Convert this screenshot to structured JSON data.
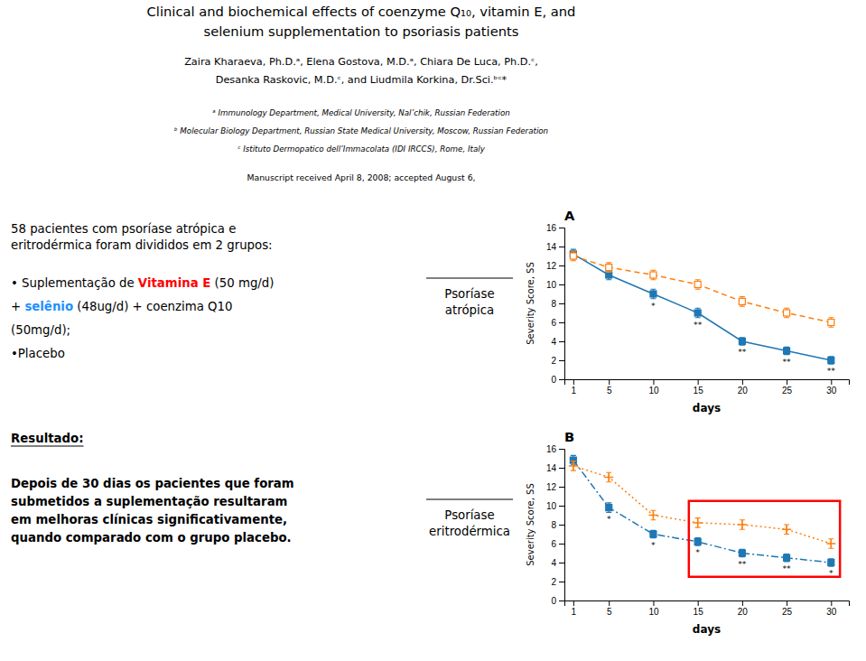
{
  "page_text": {
    "title": [
      "Clinical and biochemical effects of coenzyme Q₁₀, vitamin E, and",
      "selenium supplementation to psoriasis patients"
    ],
    "authors": [
      "Zaira Kharaeva, Ph.D.ᵃ, Elena Gostova, M.D.ᵃ, Chiara De Luca, Ph.D.ᶜ,",
      "Desanka Raskovic, M.D.ᶜ, and Liudmila Korkina, Dr.Sci.ᵇᶜ*"
    ],
    "affiliations": [
      "ᵃ Immunology Department, Medical University, Nal’chik, Russian Federation",
      "ᵇ Molecular Biology Department, Russian State Medical University, Moscow, Russian Federation",
      "ᶜ Istituto Dermopatico dell’Immacolata (IDI IRCCS), Rome, Italy"
    ],
    "received": "Manuscript received April 8, 2008; accepted August 6,",
    "methods": [
      [
        {
          "text": "58 pacientes com psoríase atrópica e"
        }
      ],
      [
        {
          "text": "eritrodérmica foram divididos em 2 grupos:"
        }
      ],
      [
        {
          "text": "• Suplementação de "
        },
        {
          "text": "Vitamina E",
          "color": "#ff0000"
        },
        {
          "text": " (50 mg/d)"
        }
      ],
      [
        {
          "text": "+ "
        },
        {
          "text": "selênio",
          "color": "#1e90ff"
        },
        {
          "text": " (48ug/d) + coenzima Q10"
        }
      ],
      [
        {
          "text": "(50mg/d);"
        }
      ],
      [
        {
          "text": "•Placebo"
        }
      ]
    ],
    "result_heading": "Resultado:",
    "result": [
      "Depois de 30 dias os pacientes que foram",
      "submetidos a suplementação resultaram",
      "em melhoras clínicas significativamente,",
      "quando comparado com o grupo placebo."
    ]
  },
  "chart_data": [
    {
      "type": "line",
      "title": "A",
      "x_label": "days",
      "y_label": "Severity Score, SS",
      "annotations": [
        "Psoríase",
        "atrópica"
      ],
      "x": [
        1,
        5,
        10,
        15,
        20,
        25,
        30
      ],
      "xlim": [
        0,
        32
      ],
      "xticks": [
        1,
        5,
        10,
        15,
        20,
        25,
        30
      ],
      "ylim": [
        0,
        16
      ],
      "yticks": [
        0,
        2,
        4,
        6,
        8,
        10,
        12,
        14,
        16
      ],
      "grid": false,
      "series": [
        {
          "values": [
            13.2,
            11.0,
            9.0,
            7.0,
            4.0,
            3.0,
            2.0
          ],
          "errors": [
            0.5,
            0.5,
            0.5,
            0.5,
            0.4,
            0.4,
            0.4
          ],
          "line_style": "solid",
          "marker": "square",
          "significance": [
            null,
            null,
            "*",
            "**",
            "**",
            "**",
            "**"
          ]
        },
        {
          "values": [
            13.0,
            11.8,
            11.0,
            10.0,
            8.2,
            7.0,
            6.0
          ],
          "errors": [
            0.5,
            0.5,
            0.5,
            0.5,
            0.5,
            0.5,
            0.5
          ],
          "line_style": "dashed",
          "marker": "open-square"
        }
      ]
    },
    {
      "type": "line",
      "title": "B",
      "x_label": "days",
      "y_label": "Severity Score, SS",
      "annotations": [
        "Psoríase",
        "eritrodérmica"
      ],
      "x": [
        1,
        5,
        10,
        15,
        20,
        25,
        30
      ],
      "xlim": [
        0,
        32
      ],
      "xticks": [
        1,
        5,
        10,
        15,
        20,
        25,
        30
      ],
      "ylim": [
        0,
        16
      ],
      "yticks": [
        0,
        2,
        4,
        6,
        8,
        10,
        12,
        14,
        16
      ],
      "grid": false,
      "series": [
        {
          "values": [
            14.8,
            9.8,
            7.0,
            6.2,
            5.0,
            4.5,
            4.0
          ],
          "errors": [
            0.5,
            0.5,
            0.4,
            0.4,
            0.4,
            0.4,
            0.4
          ],
          "line_style": "dashdot",
          "marker": "square",
          "significance": [
            null,
            "*",
            "*",
            "*",
            "**",
            "**",
            "*"
          ]
        },
        {
          "values": [
            14.2,
            13.0,
            9.0,
            8.2,
            8.0,
            7.5,
            6.0
          ],
          "errors": [
            0.5,
            0.5,
            0.5,
            0.5,
            0.5,
            0.5,
            0.5
          ],
          "line_style": "dotted",
          "marker": "plus"
        }
      ],
      "highlight": {
        "x": [
          14,
          31
        ],
        "y": [
          2.5,
          10.5
        ],
        "color": "#ff0000"
      }
    }
  ]
}
